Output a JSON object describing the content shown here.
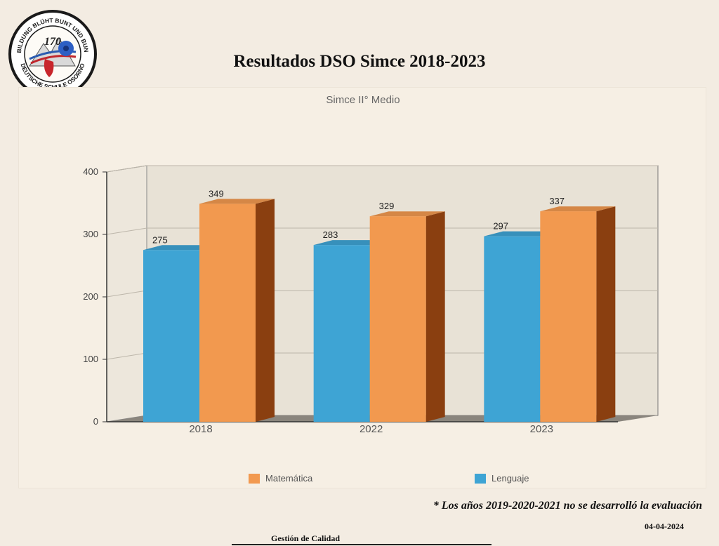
{
  "page": {
    "title": "Resultados DSO Simce 2018-2023",
    "footnote": "* Los años 2019-2020-2021 no se desarrolló la evaluación",
    "date": "04-04-2024",
    "footer": "Gestión de Calidad",
    "logo": {
      "ring_text_top": "UNSERE BILDUNG BLÜHT BUNT UND BUNDESWEIT",
      "ring_text_bottom": "DEUTSCHE SCHULE OSORNO",
      "badge": "170"
    }
  },
  "chart_data": {
    "type": "bar",
    "title": "Simce II° Medio",
    "categories": [
      "2018",
      "2022",
      "2023"
    ],
    "series": [
      {
        "name": "Lenguaje",
        "values": [
          275,
          283,
          297
        ],
        "color": "#3ea4d4"
      },
      {
        "name": "Matemática",
        "values": [
          349,
          329,
          337
        ],
        "color": "#f2994f"
      }
    ],
    "ylim": [
      0,
      400
    ],
    "yticks": [
      0,
      100,
      200,
      300,
      400
    ],
    "grid": true,
    "legend_position": "bottom",
    "legend_order": [
      "Matemática",
      "Lenguaje"
    ],
    "style": "3d",
    "colors": {
      "side_shade": "#8a3f10",
      "back_wall": "#e8e2d6"
    }
  }
}
